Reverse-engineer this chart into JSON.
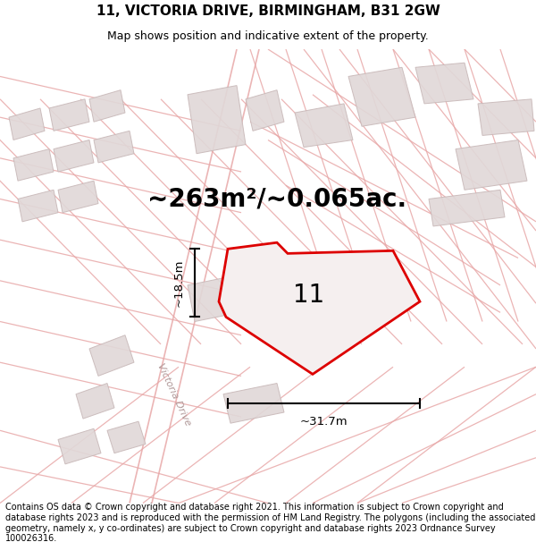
{
  "title_line1": "11, VICTORIA DRIVE, BIRMINGHAM, B31 2GW",
  "title_line2": "Map shows position and indicative extent of the property.",
  "area_text": "~263m²/~0.065ac.",
  "label_number": "11",
  "dim_height": "~18.5m",
  "dim_width": "~31.7m",
  "road_label": "Victoria Drive",
  "footer_text": "Contains OS data © Crown copyright and database right 2021. This information is subject to Crown copyright and database rights 2023 and is reproduced with the permission of HM Land Registry. The polygons (including the associated geometry, namely x, y co-ordinates) are subject to Crown copyright and database rights 2023 Ordnance Survey 100026316.",
  "bg_color": "#ffffff",
  "map_bg": "#f7f2f2",
  "red_line": "#dd0000",
  "light_red": "#e8a8a8",
  "light_red2": "#f0c0c0",
  "building_fill": "#e0d8d8",
  "building_edge": "#c8b8b8",
  "title_fontsize": 11,
  "subtitle_fontsize": 9,
  "footer_fontsize": 7.0,
  "area_fontsize": 20,
  "number_fontsize": 20,
  "dim_fontsize": 9.5,
  "road_label_fontsize": 8
}
